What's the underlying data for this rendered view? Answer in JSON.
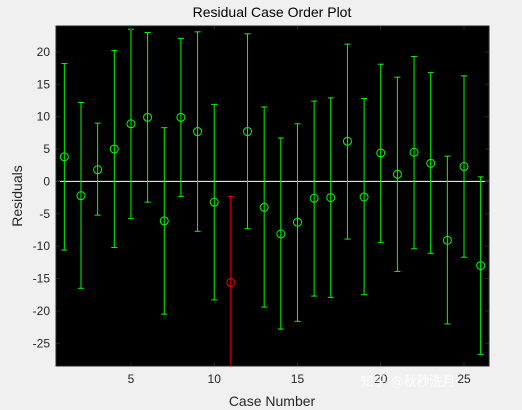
{
  "chart_data": {
    "type": "scatter",
    "title": "Residual Case Order Plot",
    "xlabel": "Case Number",
    "ylabel": "Residuals",
    "xlim": [
      0.5,
      26.5
    ],
    "ylim": [
      -28.5,
      24
    ],
    "xticks": [
      5,
      10,
      15,
      20,
      25
    ],
    "yticks": [
      -25,
      -20,
      -15,
      -10,
      -5,
      0,
      5,
      10,
      15,
      20
    ],
    "grid": false,
    "background": "#000000",
    "zero_line": 0,
    "colors": {
      "normal": "#00ff00",
      "outlier": "#ff0000",
      "zero_line": "#ffffff"
    },
    "points": [
      {
        "case": 1,
        "residual": 3.8,
        "ci_low": -10.6,
        "ci_high": 18.2,
        "outlier": false
      },
      {
        "case": 2,
        "residual": -2.2,
        "ci_low": -16.5,
        "ci_high": 12.2,
        "outlier": false
      },
      {
        "case": 3,
        "residual": 1.8,
        "ci_low": -5.2,
        "ci_high": 9.0,
        "outlier": false
      },
      {
        "case": 4,
        "residual": 5.0,
        "ci_low": -10.2,
        "ci_high": 20.2,
        "outlier": false
      },
      {
        "case": 5,
        "residual": 8.9,
        "ci_low": -5.7,
        "ci_high": 23.5,
        "outlier": false
      },
      {
        "case": 6,
        "residual": 9.9,
        "ci_low": -3.2,
        "ci_high": 23.0,
        "outlier": false
      },
      {
        "case": 7,
        "residual": -6.1,
        "ci_low": -20.5,
        "ci_high": 8.3,
        "outlier": false
      },
      {
        "case": 8,
        "residual": 9.9,
        "ci_low": -2.3,
        "ci_high": 22.1,
        "outlier": false
      },
      {
        "case": 9,
        "residual": 7.7,
        "ci_low": -7.7,
        "ci_high": 23.1,
        "outlier": false
      },
      {
        "case": 10,
        "residual": -3.2,
        "ci_low": -18.3,
        "ci_high": 11.9,
        "outlier": false
      },
      {
        "case": 11,
        "residual": -15.6,
        "ci_low": -28.5,
        "ci_high": -2.3,
        "outlier": true
      },
      {
        "case": 12,
        "residual": 7.7,
        "ci_low": -7.3,
        "ci_high": 22.8,
        "outlier": false
      },
      {
        "case": 13,
        "residual": -4.0,
        "ci_low": -19.4,
        "ci_high": 11.5,
        "outlier": false
      },
      {
        "case": 14,
        "residual": -8.1,
        "ci_low": -22.8,
        "ci_high": 6.7,
        "outlier": false
      },
      {
        "case": 15,
        "residual": -6.3,
        "ci_low": -21.6,
        "ci_high": 8.9,
        "outlier": false
      },
      {
        "case": 16,
        "residual": -2.6,
        "ci_low": -17.7,
        "ci_high": 12.4,
        "outlier": false
      },
      {
        "case": 17,
        "residual": -2.5,
        "ci_low": -17.9,
        "ci_high": 12.9,
        "outlier": false
      },
      {
        "case": 18,
        "residual": 6.2,
        "ci_low": -8.9,
        "ci_high": 21.2,
        "outlier": false
      },
      {
        "case": 19,
        "residual": -2.4,
        "ci_low": -17.5,
        "ci_high": 12.8,
        "outlier": false
      },
      {
        "case": 20,
        "residual": 4.4,
        "ci_low": -9.4,
        "ci_high": 18.1,
        "outlier": false
      },
      {
        "case": 21,
        "residual": 1.1,
        "ci_low": -13.9,
        "ci_high": 16.1,
        "outlier": false
      },
      {
        "case": 22,
        "residual": 4.5,
        "ci_low": -10.4,
        "ci_high": 19.3,
        "outlier": false
      },
      {
        "case": 23,
        "residual": 2.8,
        "ci_low": -11.1,
        "ci_high": 16.8,
        "outlier": false
      },
      {
        "case": 24,
        "residual": -9.1,
        "ci_low": -22.0,
        "ci_high": 3.9,
        "outlier": false
      },
      {
        "case": 25,
        "residual": 2.3,
        "ci_low": -11.7,
        "ci_high": 16.3,
        "outlier": false
      },
      {
        "case": 26,
        "residual": -13.0,
        "ci_low": -26.7,
        "ci_high": 0.7,
        "outlier": false
      }
    ]
  },
  "watermark": {
    "text": "知乎 @秋秒洗月"
  }
}
